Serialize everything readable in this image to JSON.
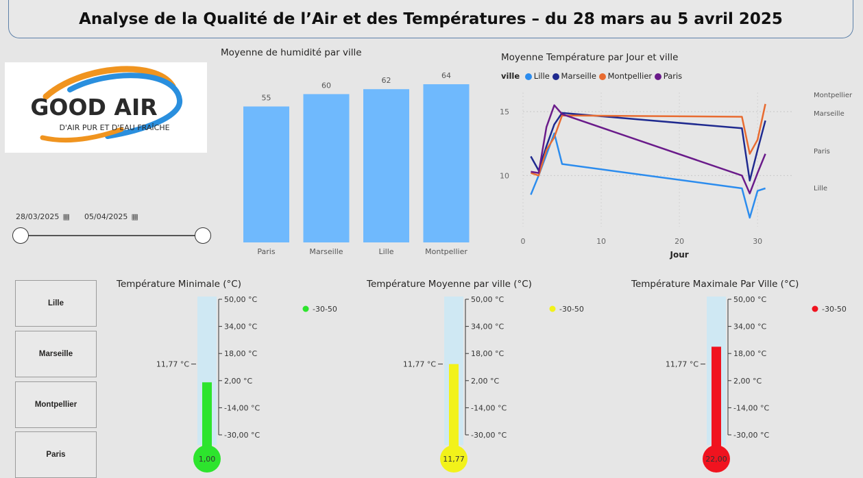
{
  "title": "Analyse de la Qualité de l’Air et des Températures – du 28 mars au 5 avril 2025",
  "logo": {
    "brand": "GOOD AIR",
    "tagline": "D'AIR PUR ET D'EAU FRAÎCHE"
  },
  "date_slicer": {
    "start": "28/03/2025",
    "end": "05/04/2025",
    "calendar_icon": "calendar-icon"
  },
  "city_slicer": [
    "Lille",
    "Marseille",
    "Montpellier",
    "Paris"
  ],
  "humidity_chart_title": "Moyenne de humidité par ville",
  "temp_chart_title": "Moyenne Température par Jour et ville",
  "temp_legend_label": "ville",
  "chart_data": [
    {
      "type": "bar",
      "title": "Moyenne de humidité par ville",
      "categories": [
        "Paris",
        "Marseille",
        "Lille",
        "Montpellier"
      ],
      "values": [
        55,
        60,
        62,
        64
      ],
      "color": "#6fb9fd",
      "ylim": [
        0,
        64
      ]
    },
    {
      "type": "line",
      "title": "Moyenne Température par Jour et ville",
      "xlabel": "Jour",
      "ylabel": "",
      "xlim": [
        0,
        32
      ],
      "ylim": [
        6,
        16.5
      ],
      "x_ticks": [
        0,
        10,
        20,
        30
      ],
      "y_ticks": [
        10,
        15
      ],
      "legend_position": "top-left",
      "series": [
        {
          "name": "Lille",
          "color": "#2b8cee",
          "x": [
            1,
            2,
            4,
            5,
            28,
            29,
            30,
            31
          ],
          "y": [
            8.5,
            10.0,
            13.3,
            10.9,
            9.0,
            6.7,
            8.8,
            9.0
          ],
          "end_label": "Lille"
        },
        {
          "name": "Marseille",
          "color": "#1f2a8f",
          "x": [
            1,
            2,
            3,
            4,
            5,
            28,
            29,
            30,
            31
          ],
          "y": [
            11.5,
            10.4,
            12.3,
            14.0,
            14.9,
            13.7,
            9.6,
            12.0,
            14.3
          ],
          "end_label": "Marseille"
        },
        {
          "name": "Montpellier",
          "color": "#e86b30",
          "x": [
            1,
            2,
            3,
            4,
            5,
            28,
            29,
            30,
            31
          ],
          "y": [
            10.2,
            10.0,
            12.0,
            13.0,
            14.7,
            14.6,
            11.7,
            12.8,
            15.6
          ],
          "end_label": "Montpellier"
        },
        {
          "name": "Paris",
          "color": "#6a1b8a",
          "x": [
            1,
            2,
            3,
            4,
            5,
            28,
            29,
            30,
            31
          ],
          "y": [
            10.3,
            10.2,
            13.8,
            15.5,
            14.8,
            10.0,
            8.6,
            10.2,
            11.7
          ],
          "end_label": "Paris"
        }
      ]
    },
    {
      "type": "gauge",
      "title": "Température Minimale (°C)",
      "value": 1.0,
      "value_label": "1,00",
      "reference_label": "11,77 °C",
      "reference_value": 11.77,
      "min": -30,
      "max": 50,
      "ticks": [
        "50,00 °C",
        "34,00 °C",
        "18,00 °C",
        "2,00 °C",
        "-14,00 °C",
        "-30,00 °C"
      ],
      "legend": "-30-50",
      "color": "#2de42d"
    },
    {
      "type": "gauge",
      "title": "Température Moyenne par ville (°C)",
      "value": 11.77,
      "value_label": "11,77",
      "reference_label": "11,77 °C",
      "reference_value": 11.77,
      "min": -30,
      "max": 50,
      "ticks": [
        "50,00 °C",
        "34,00 °C",
        "18,00 °C",
        "2,00 °C",
        "-14,00 °C",
        "-30,00 °C"
      ],
      "legend": "-30-50",
      "color": "#f2f21a"
    },
    {
      "type": "gauge",
      "title": "Température Maximale Par Ville (°C)",
      "value": 22.0,
      "value_label": "22,00",
      "reference_label": "11,77 °C",
      "reference_value": 11.77,
      "min": -30,
      "max": 50,
      "ticks": [
        "50,00 °C",
        "34,00 °C",
        "18,00 °C",
        "2,00 °C",
        "-14,00 °C",
        "-30,00 °C"
      ],
      "legend": "-30-50",
      "color": "#f0131f"
    }
  ]
}
